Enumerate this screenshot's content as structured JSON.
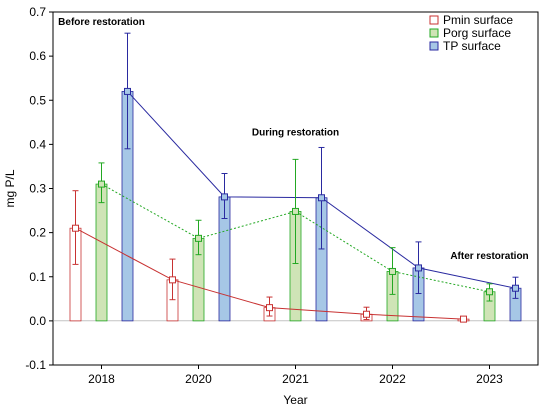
{
  "chart_data": {
    "type": "bar",
    "xlabel": "Year",
    "ylabel": "mg P/L",
    "ylim": [
      -0.1,
      0.7
    ],
    "yticks": [
      -0.1,
      0.0,
      0.1,
      0.2,
      0.3,
      0.4,
      0.5,
      0.6,
      0.7
    ],
    "ytick_labels": [
      "-0.1",
      "0.0",
      "0.1",
      "0.2",
      "0.3",
      "0.4",
      "0.5",
      "0.6",
      "0.7"
    ],
    "categories": [
      "2018",
      "2020",
      "2021",
      "2022",
      "2023"
    ],
    "grid": false,
    "legend_position": "top-right",
    "series": [
      {
        "name": "Pmin surface",
        "values": [
          0.21,
          0.093,
          0.03,
          0.015,
          0.004
        ],
        "err_low": [
          0.128,
          0.048,
          0.011,
          0.003,
          null
        ],
        "err_high": [
          0.295,
          0.14,
          0.054,
          0.031,
          null
        ],
        "fill": "#ffffff",
        "edge": "#c83232",
        "line_style": "solid"
      },
      {
        "name": "Porg surface",
        "values": [
          0.31,
          0.187,
          0.248,
          0.112,
          0.066
        ],
        "err_low": [
          0.268,
          0.15,
          0.13,
          0.06,
          0.045
        ],
        "err_high": [
          0.358,
          0.228,
          0.366,
          0.166,
          0.084
        ],
        "fill": "#cfe4b6",
        "edge": "#23a823",
        "line_style": "dotted"
      },
      {
        "name": "TP surface",
        "values": [
          0.52,
          0.281,
          0.279,
          0.12,
          0.074
        ],
        "err_low": [
          0.39,
          0.232,
          0.163,
          0.062,
          0.051
        ],
        "err_high": [
          0.652,
          0.334,
          0.393,
          0.179,
          0.099
        ],
        "fill": "#a6c7e6",
        "edge": "#2a2aa0",
        "line_style": "solid"
      }
    ],
    "annotations": [
      {
        "text": "Before restoration",
        "category": "2018",
        "y": 0.67
      },
      {
        "text": "During restoration",
        "category": "2021",
        "y": 0.42
      },
      {
        "text": "After restoration",
        "category": "2023",
        "y": 0.14
      }
    ]
  }
}
